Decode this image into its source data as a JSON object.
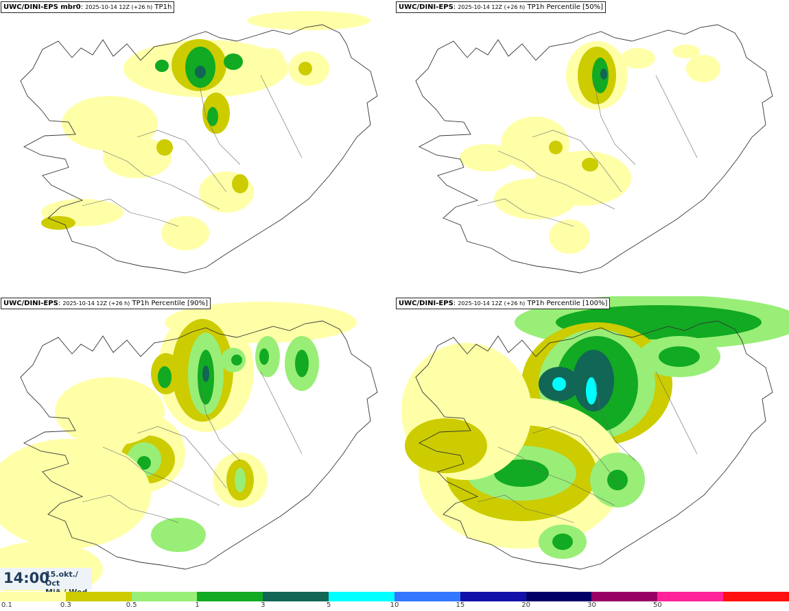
{
  "panels": [
    {
      "model": "UWC/DINI-EPS mbr0",
      "run": "2025-10-14 12Z (+26 h)",
      "product": "TP1h"
    },
    {
      "model": "UWC/DINI-EPS",
      "run": "2025-10-14 12Z (+26 h)",
      "product": "TP1h Percentile [50%]"
    },
    {
      "model": "UWC/DINI-EPS",
      "run": "2025-10-14 12Z (+26 h)",
      "product": "TP1h Percentile [90%]"
    },
    {
      "model": "UWC/DINI-EPS",
      "run": "2025-10-14 12Z (+26 h)",
      "product": "TP1h Percentile [100%]"
    }
  ],
  "valid_time": {
    "time": "14:00",
    "date_line1": "15.okt./ Oct",
    "date_line2": "Mið./ Wed"
  },
  "legend": {
    "colors": [
      "#ffffa8",
      "#cccc00",
      "#99ee77",
      "#11aa22",
      "#116655",
      "#00ffff",
      "#3377ff",
      "#1111aa",
      "#000066",
      "#990066",
      "#ff2299",
      "#ff1111"
    ],
    "ticks": [
      "0.1",
      "0.3",
      "0.5",
      "1",
      "3",
      "5",
      "10",
      "15",
      "20",
      "30",
      "50"
    ]
  },
  "precip_colors": {
    "light": "#ffffa8",
    "yellow_green": "#cccc00",
    "light_green": "#99ee77",
    "green": "#11aa22",
    "dark_green": "#116655",
    "cyan": "#00ffff"
  }
}
